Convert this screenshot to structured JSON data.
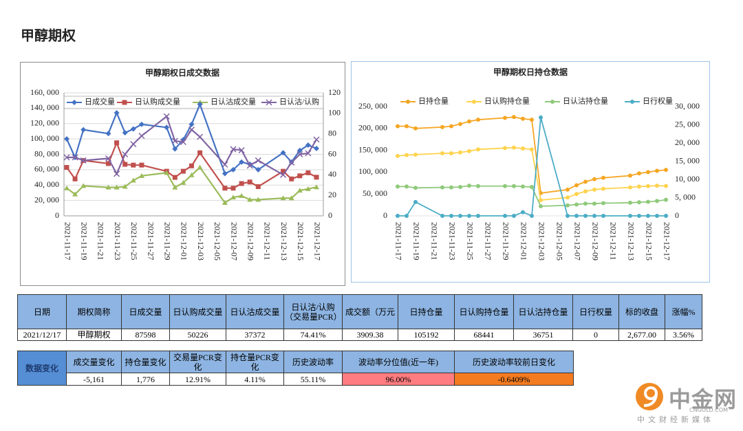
{
  "page_title": "甲醇期权",
  "chart_data": [
    {
      "type": "line",
      "title": "甲醇期权日成交数据",
      "x": [
        "2021-11-17",
        "2021-11-18",
        "2021-11-19",
        "2021-11-22",
        "2021-11-23",
        "2021-11-24",
        "2021-11-25",
        "2021-11-26",
        "2021-11-29",
        "2021-11-30",
        "2021-12-01",
        "2021-12-02",
        "2021-12-03",
        "2021-12-06",
        "2021-12-07",
        "2021-12-08",
        "2021-12-09",
        "2021-12-10",
        "2021-12-13",
        "2021-12-14",
        "2021-12-15",
        "2021-12-16",
        "2021-12-17"
      ],
      "xlim": [
        "2021-11-17",
        "2021-12-17"
      ],
      "xticks": [
        "2021-11-17",
        "2021-11-19",
        "2021-11-21",
        "2021-11-23",
        "2021-11-25",
        "2021-11-27",
        "2021-11-29",
        "2021-12-01",
        "2021-12-03",
        "2021-12-05",
        "2021-12-07",
        "2021-12-09",
        "2021-12-11",
        "2021-12-13",
        "2021-12-15",
        "2021-12-17"
      ],
      "ylim": [
        0,
        160000
      ],
      "yticks": [
        0,
        {
          "value": 20000,
          "label": "20, 000"
        },
        {
          "value": 40000,
          "label": "40, 000"
        },
        {
          "value": 60000,
          "label": "60, 000"
        },
        {
          "value": 80000,
          "label": "80, 000"
        },
        {
          "value": 100000,
          "label": "100, 000"
        },
        {
          "value": 120000,
          "label": "120, 000"
        },
        {
          "value": 140000,
          "label": "140, 000"
        },
        {
          "value": 160000,
          "label": "160, 000"
        }
      ],
      "y2lim": [
        0,
        120
      ],
      "y2ticks": [
        0,
        20,
        40,
        60,
        80,
        100,
        120
      ],
      "grid": true,
      "legend": "top",
      "series": [
        {
          "name": "日成交量",
          "color": "#4472c4",
          "marker": "diamond",
          "values": [
            100000,
            76000,
            112000,
            107000,
            134000,
            108000,
            113000,
            119000,
            115000,
            87000,
            99000,
            119000,
            145000,
            55000,
            60000,
            70000,
            67000,
            60000,
            82000,
            70000,
            85000,
            92000,
            87598
          ]
        },
        {
          "name": "日认购成交量",
          "color": "#c0504d",
          "marker": "square",
          "values": [
            63000,
            48000,
            72000,
            68000,
            95000,
            67000,
            66000,
            66000,
            58000,
            50000,
            58000,
            65000,
            82000,
            36000,
            36000,
            42000,
            44000,
            38000,
            58000,
            48000,
            52000,
            56000,
            50226
          ]
        },
        {
          "name": "日认沽成交量",
          "color": "#9bbb59",
          "marker": "triangle",
          "values": [
            36000,
            28000,
            39000,
            37000,
            37000,
            38000,
            46000,
            52000,
            56000,
            37000,
            43000,
            53000,
            63000,
            17000,
            24000,
            26000,
            21000,
            21000,
            23000,
            23000,
            33000,
            35000,
            37372
          ]
        },
        {
          "name": "日认沽/认购",
          "color": "#8064a2",
          "marker": "x",
          "axis": "y2",
          "values": [
            57,
            57,
            54,
            56,
            41,
            60,
            70,
            78,
            97,
            73,
            72,
            84,
            77,
            50,
            65,
            64,
            49,
            54,
            40,
            52,
            60,
            61,
            74.41
          ]
        }
      ]
    },
    {
      "type": "line",
      "title": "甲醇期权日持仓数据",
      "x": [
        "2021-11-17",
        "2021-11-18",
        "2021-11-19",
        "2021-11-22",
        "2021-11-23",
        "2021-11-24",
        "2021-11-25",
        "2021-11-26",
        "2021-11-29",
        "2021-11-30",
        "2021-12-01",
        "2021-12-02",
        "2021-12-03",
        "2021-12-06",
        "2021-12-07",
        "2021-12-08",
        "2021-12-09",
        "2021-12-10",
        "2021-12-13",
        "2021-12-14",
        "2021-12-15",
        "2021-12-16",
        "2021-12-17"
      ],
      "xlim": [
        "2021-11-17",
        "2021-12-17"
      ],
      "xticks": [
        "2021-11-17",
        "2021-11-19",
        "2021-11-21",
        "2021-11-23",
        "2021-11-25",
        "2021-11-27",
        "2021-11-29",
        "2021-12-01",
        "2021-12-03",
        "2021-12-05",
        "2021-12-07",
        "2021-12-09",
        "2021-12-11",
        "2021-12-13",
        "2021-12-15",
        "2021-12-17"
      ],
      "ylim": [
        0,
        250000
      ],
      "yticks": [
        0,
        {
          "value": 50000,
          "label": "50, 000"
        },
        {
          "value": 100000,
          "label": "100, 000"
        },
        {
          "value": 150000,
          "label": "150, 000"
        },
        {
          "value": 200000,
          "label": "200, 000"
        },
        {
          "value": 250000,
          "label": "250, 000"
        }
      ],
      "y2lim": [
        0,
        30000
      ],
      "y2ticks": [
        0,
        {
          "value": 5000,
          "label": "5, 000"
        },
        {
          "value": 10000,
          "label": "10, 000"
        },
        {
          "value": 15000,
          "label": "15, 000"
        },
        {
          "value": 20000,
          "label": "20, 000"
        },
        {
          "value": 25000,
          "label": "25, 000"
        },
        {
          "value": 30000,
          "label": "30, 000"
        }
      ],
      "grid": false,
      "legend": "top",
      "series": [
        {
          "name": "日持仓量",
          "color": "#f5a623",
          "marker": "circle",
          "values": [
            205000,
            205000,
            200000,
            203000,
            205000,
            210000,
            216000,
            220000,
            224000,
            226000,
            222000,
            220000,
            52000,
            60000,
            70000,
            78000,
            84000,
            87000,
            92000,
            97000,
            100000,
            103000,
            105192
          ]
        },
        {
          "name": "日认购持仓量",
          "color": "#ffd34e",
          "marker": "circle",
          "values": [
            137000,
            139000,
            140000,
            143000,
            143000,
            145000,
            148000,
            152000,
            155000,
            156000,
            154000,
            152000,
            36000,
            42000,
            50000,
            56000,
            60000,
            62000,
            65000,
            67000,
            68000,
            69000,
            68441
          ]
        },
        {
          "name": "日认沽持仓量",
          "color": "#8fc97a",
          "marker": "circle",
          "values": [
            67000,
            67000,
            64000,
            65000,
            65000,
            66000,
            69000,
            68000,
            68000,
            68000,
            67000,
            66000,
            22000,
            24000,
            26000,
            28000,
            28000,
            29000,
            30000,
            31000,
            32000,
            34000,
            36751
          ]
        },
        {
          "name": "日行权量",
          "color": "#4bacc6",
          "marker": "circle",
          "axis": "y2",
          "values": [
            0,
            0,
            3800,
            0,
            0,
            0,
            0,
            0,
            0,
            0,
            1000,
            0,
            27000,
            0,
            0,
            0,
            0,
            0,
            0,
            0,
            0,
            0,
            0
          ]
        }
      ]
    }
  ],
  "table": {
    "headers": [
      "日期",
      "期权简称",
      "日成交量",
      "日认购成交量",
      "日认沽成交量",
      "日认沽/认购（交易量PCR）",
      "成交额（万元",
      "日持仓量",
      "日认购持仓量",
      "日认沽持仓量",
      "日行权量",
      "标的收盘",
      "涨幅%"
    ],
    "rows": [
      [
        "2021/12/17",
        "甲醇期权",
        "87598",
        "50226",
        "37372",
        "74.41%",
        "3909.38",
        "105192",
        "68441",
        "36751",
        "0",
        "2,677.00",
        "3.56%"
      ]
    ]
  },
  "changes": {
    "title": "数据变化",
    "headers": [
      "成交量变化",
      "持仓量变化",
      "交易量PCR变化",
      "持仓量PCR变化",
      "历史波动率",
      "波动率分位值(近一年)",
      "历史波动率较前日变化"
    ],
    "values": [
      "-5,161",
      "1,776",
      "12.91%",
      "4.11%",
      "55.11%",
      "96.00%",
      "-0.6409%"
    ]
  },
  "logo": {
    "brand": "中金网",
    "domain": "CNGOLD.COM",
    "slogan": "中文财经新媒体"
  }
}
